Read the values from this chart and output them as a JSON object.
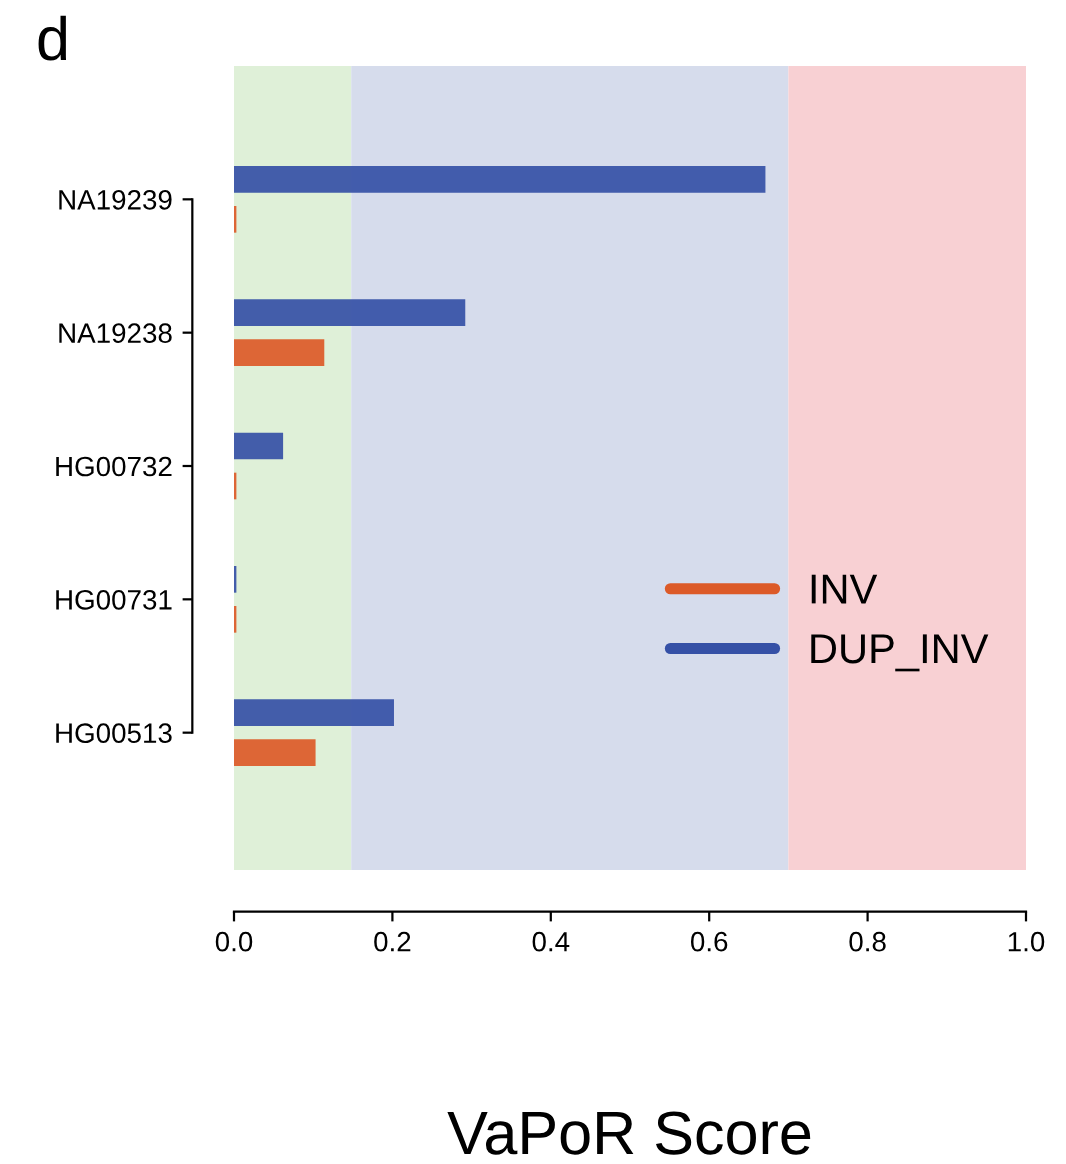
{
  "chart_data": {
    "type": "bar",
    "orientation": "horizontal",
    "categories": [
      "NA19239",
      "NA19238",
      "HG00732",
      "HG00731",
      "HG00513"
    ],
    "series": [
      {
        "name": "DUP_INV",
        "color": "#3550a6",
        "values": [
          0.671,
          0.292,
          0.062,
          0.003,
          0.202
        ]
      },
      {
        "name": "INV",
        "color": "#dc5a28",
        "values": [
          0.003,
          0.114,
          0.003,
          0.003,
          0.103
        ]
      }
    ],
    "xlabel": "VaPoR Score",
    "xlim": [
      0,
      1
    ],
    "xticks": [
      {
        "value": 0,
        "label": "0.0"
      },
      {
        "value": 0.2,
        "label": "0.2"
      },
      {
        "value": 0.4,
        "label": "0.4"
      },
      {
        "value": 0.6,
        "label": "0.6"
      },
      {
        "value": 0.8,
        "label": "0.8"
      },
      {
        "value": 1,
        "label": "1.0"
      }
    ],
    "bands": [
      {
        "axis": "x",
        "from": 0,
        "to": 0.148,
        "color": "#dff0d8"
      },
      {
        "axis": "x",
        "from": 0.148,
        "to": 0.7,
        "color": "#d6dcec"
      },
      {
        "axis": "x",
        "from": 0.7,
        "to": 1,
        "color": "#f8d0d3"
      }
    ],
    "annotations": [
      "d"
    ],
    "legend": "bottom right",
    "grid": false
  }
}
